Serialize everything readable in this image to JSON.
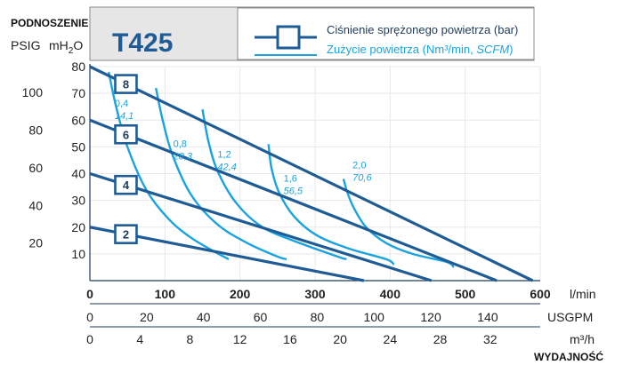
{
  "header": {
    "lift_label": "PODNOSZENIE",
    "psig_label": "PSIG",
    "mh2o_label_main": "mH",
    "mh2o_label_sub": "2",
    "mh2o_label_end": "O",
    "model": "T425",
    "legend_pressure": "Ciśnienie sprężonego powietrza (bar)",
    "legend_air_prefix": "Zużycie powietrza (Nm³/min, ",
    "legend_air_italic": "SCFM",
    "legend_air_suffix": ")"
  },
  "footer": {
    "capacity_label": "WYDAJNOŚĆ"
  },
  "colors": {
    "pressure_line": "#1f5c96",
    "air_line": "#1aa3e0",
    "header_bg": "#e6e6e6",
    "grid": "#e8e8e8",
    "axis": "#1f3a5c"
  },
  "chart_data": {
    "type": "line",
    "title": "T425",
    "xlabel": "WYDAJNOŚĆ",
    "ylabel": "PODNOSZENIE",
    "xlim": [
      0,
      600
    ],
    "ylim": [
      0,
      80
    ],
    "x_unit": "l/min",
    "y_unit": "mH2O",
    "grid": true,
    "x_axes": [
      {
        "unit": "l/min",
        "ticks": [
          0,
          100,
          200,
          300,
          400,
          500,
          600
        ],
        "tick_labels": [
          "0",
          "100",
          "200",
          "300",
          "400",
          "500",
          "600"
        ]
      },
      {
        "unit": "USGPM",
        "ticks": [
          0,
          20,
          40,
          60,
          80,
          100,
          120,
          140
        ],
        "tick_labels": [
          "0",
          "20",
          "40",
          "60",
          "80",
          "100",
          "120",
          "140"
        ]
      },
      {
        "unit": "m³/h",
        "ticks": [
          0,
          4,
          8,
          12,
          16,
          20,
          24,
          28,
          32
        ],
        "tick_labels": [
          "0",
          "4",
          "8",
          "12",
          "16",
          "20",
          "24",
          "28",
          "32"
        ]
      }
    ],
    "y_axes": [
      {
        "unit": "mH2O",
        "ticks": [
          10,
          20,
          30,
          40,
          50,
          60,
          70,
          80
        ],
        "tick_labels": [
          "10",
          "20",
          "30",
          "40",
          "50",
          "60",
          "70",
          "80"
        ]
      },
      {
        "unit": "PSIG",
        "ticks": [
          20,
          40,
          60,
          80,
          100
        ],
        "tick_labels": [
          "20",
          "40",
          "60",
          "80",
          "100"
        ]
      }
    ],
    "pressure_series": [
      {
        "label": "8",
        "x": [
          0,
          590
        ],
        "y": [
          80,
          0
        ]
      },
      {
        "label": "6",
        "x": [
          0,
          542
        ],
        "y": [
          60,
          0
        ]
      },
      {
        "label": "4",
        "x": [
          0,
          455
        ],
        "y": [
          40,
          0
        ]
      },
      {
        "label": "2",
        "x": [
          0,
          365
        ],
        "y": [
          20,
          0
        ]
      }
    ],
    "air_series": [
      {
        "label_a": "0,4",
        "label_b": "14,1",
        "x": [
          25,
          35,
          50,
          75,
          105,
          135,
          165,
          185
        ],
        "y": [
          78,
          65,
          50,
          34,
          23,
          16,
          11,
          8
        ]
      },
      {
        "label_a": "0,8",
        "label_b": "28,3",
        "x": [
          88,
          97,
          110,
          135,
          170,
          210,
          250,
          262
        ],
        "y": [
          72,
          60,
          47,
          32,
          21,
          14,
          9,
          8
        ]
      },
      {
        "label_a": "1,2",
        "label_b": "42,4",
        "x": [
          150,
          158,
          170,
          195,
          230,
          280,
          330,
          342
        ],
        "y": [
          64,
          52,
          41,
          29,
          20,
          14,
          9,
          8
        ]
      },
      {
        "label_a": "1,6",
        "label_b": "56,5",
        "x": [
          238,
          242,
          252,
          272,
          302,
          345,
          395,
          405
        ],
        "y": [
          51,
          42,
          33,
          24,
          17,
          12,
          8,
          6
        ]
      },
      {
        "label_a": "2,0",
        "label_b": "70,6",
        "x": [
          338,
          343,
          352,
          368,
          395,
          430,
          475,
          485
        ],
        "y": [
          38,
          33,
          27,
          20,
          14,
          10,
          7,
          5
        ]
      }
    ]
  }
}
